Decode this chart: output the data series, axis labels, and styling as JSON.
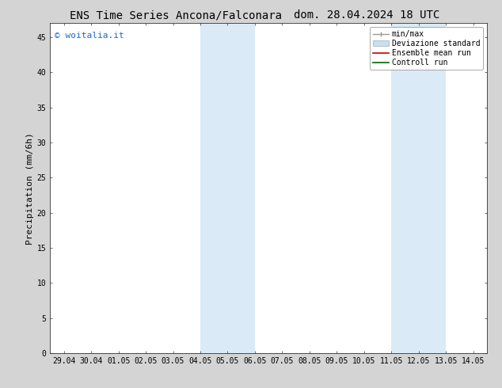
{
  "title_left": "ENS Time Series Ancona/Falconara",
  "title_right": "dom. 28.04.2024 18 UTC",
  "ylabel": "Precipitation (mm/6h)",
  "watermark": "© woitalia.it",
  "watermark_color": "#1a6ecc",
  "ylim": [
    0,
    47
  ],
  "yticks": [
    0,
    5,
    10,
    15,
    20,
    25,
    30,
    35,
    40,
    45
  ],
  "xtick_labels": [
    "29.04",
    "30.04",
    "01.05",
    "02.05",
    "03.05",
    "04.05",
    "05.05",
    "06.05",
    "07.05",
    "08.05",
    "09.05",
    "10.05",
    "11.05",
    "12.05",
    "13.05",
    "14.05"
  ],
  "shaded_bands": [
    {
      "xmin": 5.0,
      "xmax": 7.0,
      "color": "#daeaf7"
    },
    {
      "xmin": 12.0,
      "xmax": 14.0,
      "color": "#daeaf7"
    }
  ],
  "background_color": "#d4d4d4",
  "plot_bg_color": "#ffffff",
  "title_fontsize": 10,
  "tick_fontsize": 7,
  "ylabel_fontsize": 8,
  "watermark_fontsize": 8,
  "legend_fontsize": 7
}
